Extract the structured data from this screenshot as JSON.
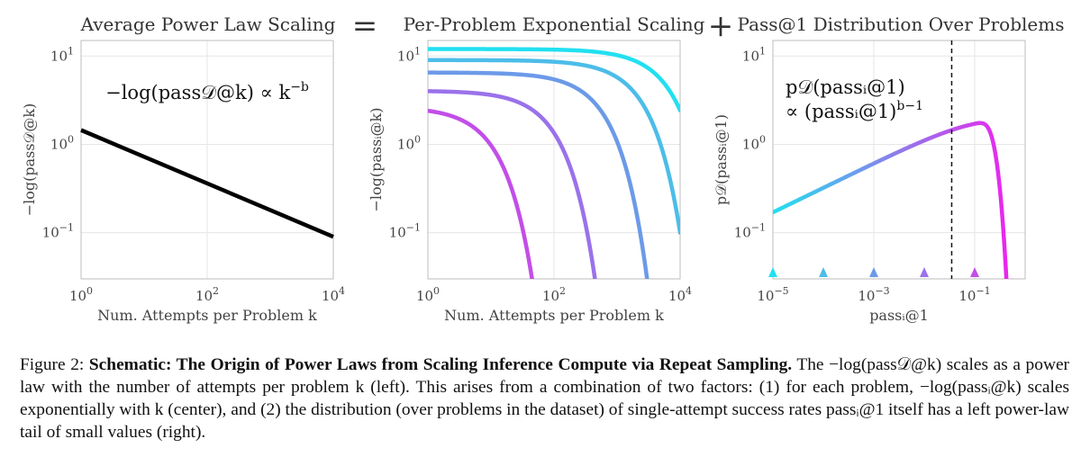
{
  "figure": {
    "titles": {
      "left": "Average Power Law Scaling",
      "op_equals": "=",
      "center": "Per-Problem Exponential Scaling",
      "op_plus": "+",
      "right": "Pass@1 Distribution Over Problems"
    },
    "caption": {
      "label": "Figure 2:",
      "bold": "Schematic: The Origin of Power Laws from Scaling Inference Compute via Repeat Sampling.",
      "rest": "The −log(pass𝒟@k) scales as a power law with the number of attempts per problem k (left). This arises from a combination of two factors: (1) for each problem, −log(passᵢ@k) scales exponentially with k (center), and (2) the distribution (over problems in the dataset) of single-attempt success rates passᵢ@1 itself has a left power-law tail of small values (right)."
    }
  },
  "chart_data": [
    {
      "type": "line",
      "xscale": "log",
      "yscale": "log",
      "xlim": [
        1,
        10000
      ],
      "ylim": [
        0.03,
        15
      ],
      "xticks": [
        "10^0",
        "10^2",
        "10^4"
      ],
      "yticks": [
        "10^-1",
        "10^0",
        "10^1"
      ],
      "xlabel": "Num. Attempts per Problem k",
      "ylabel": "−log(pass𝒟@k)",
      "annotation": "−log(pass𝒟@k) ∝ k^−b",
      "grid": true,
      "series": [
        {
          "color": "#000000",
          "x": [
            1,
            10000
          ],
          "y": [
            1.45,
            0.09
          ]
        }
      ]
    },
    {
      "type": "line",
      "xscale": "log",
      "yscale": "log",
      "xlim": [
        1,
        10000
      ],
      "ylim": [
        0.03,
        15
      ],
      "xticks": [
        "10^0",
        "10^2",
        "10^4"
      ],
      "yticks": [
        "10^-1",
        "10^0",
        "10^1"
      ],
      "xlabel": "Num. Attempts per Problem k",
      "ylabel": "−log(passᵢ@k)",
      "grid": true,
      "series": [
        {
          "color": "#22e0f0",
          "start": 12,
          "rate": 0.00016
        },
        {
          "color": "#4cbde8",
          "start": 9,
          "rate": 0.00045
        },
        {
          "color": "#6c9ae8",
          "start": 6.5,
          "rate": 0.0018
        },
        {
          "color": "#9a72ea",
          "start": 4,
          "rate": 0.011
        },
        {
          "color": "#c24ee8",
          "start": 2.4,
          "rate": 0.1
        }
      ]
    },
    {
      "type": "line",
      "xscale": "log",
      "yscale": "log",
      "xlim": [
        1e-05,
        1
      ],
      "ylim": [
        0.03,
        15
      ],
      "xticks": [
        "10^-5",
        "10^-3",
        "10^-1"
      ],
      "yticks": [
        "10^-1",
        "10^0",
        "10^1"
      ],
      "xlabel": "passᵢ@1",
      "ylabel": "p𝒟(passᵢ@1)",
      "annotation_line1": "p𝒟(passᵢ@1)",
      "annotation_line2": "∝ (passᵢ@1)^(b−1)",
      "grid": true,
      "vline_x": 0.035,
      "markers": [
        {
          "x": 1e-05,
          "color": "#22e0f0"
        },
        {
          "x": 0.0001,
          "color": "#4cbde8"
        },
        {
          "x": 0.001,
          "color": "#6c9ae8"
        },
        {
          "x": 0.01,
          "color": "#9a72ea"
        },
        {
          "x": 0.1,
          "color": "#c24ee8"
        }
      ],
      "curve": {
        "color_start": "#22e0f0",
        "color_end": "#ee22ee",
        "x_start": 1e-05,
        "y_start": 0.17,
        "peak_x": 0.12,
        "peak_y": 2.3,
        "end_x": 0.55
      }
    }
  ]
}
